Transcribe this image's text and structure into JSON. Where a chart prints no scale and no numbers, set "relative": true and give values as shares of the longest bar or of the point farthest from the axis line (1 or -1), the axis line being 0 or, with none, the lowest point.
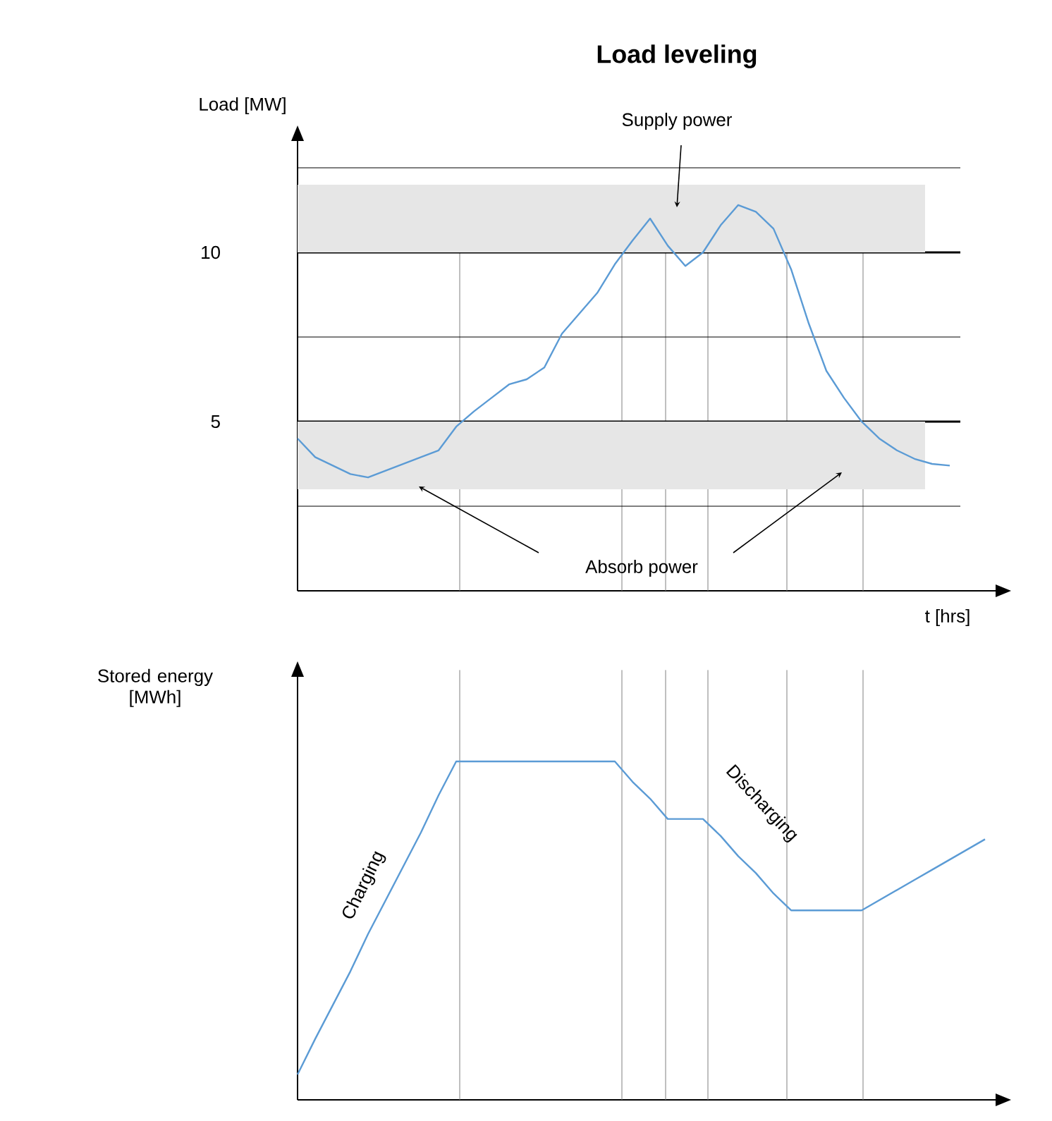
{
  "chart_data": [
    {
      "type": "line",
      "title": "Load leveling",
      "ylabel": "Load [MW]",
      "xlabel": "t [hrs]",
      "color": "#5b9bd5",
      "categories": [
        null,
        null,
        null,
        null,
        null,
        null,
        null,
        null,
        null,
        null,
        null,
        null,
        null,
        null,
        null,
        null,
        null,
        null,
        null,
        null,
        null,
        null,
        null,
        null,
        null,
        null,
        null,
        null,
        null,
        null,
        null,
        null,
        null,
        null,
        null,
        null,
        null,
        null,
        null,
        null
      ],
      "values": [
        4.5,
        3.95,
        3.7,
        3.45,
        3.35,
        3.55,
        3.75,
        3.95,
        4.15,
        4.85,
        5.3,
        5.7,
        6.1,
        6.25,
        6.6,
        7.6,
        8.2,
        8.8,
        9.65,
        10.35,
        11,
        10.2,
        9.6,
        10,
        10.8,
        11.4,
        11.2,
        10.7,
        9.5,
        7.9,
        6.5,
        5.7,
        5.0,
        4.5,
        4.15,
        3.9,
        3.75,
        3.7,
        null,
        null
      ],
      "ylim": [
        0,
        13.5
      ],
      "yticks": [
        {
          "value": 2.5,
          "label": null
        },
        5,
        {
          "value": 7.5,
          "label": null
        },
        10,
        {
          "value": 12.5,
          "label": null
        }
      ],
      "tick_labels": "y",
      "grid": "y",
      "bands": [
        {
          "axis": "y",
          "from": 10,
          "to": 12,
          "color": "#e6e6e6"
        },
        {
          "axis": "y",
          "from": 3,
          "to": 5,
          "color": "#e6e6e6"
        }
      ],
      "annotations": [
        "Supply power",
        "Absorb power"
      ]
    },
    {
      "type": "line",
      "relative": true,
      "ylabel": "Stored energy [MWh]",
      "color": "#5b9bd5",
      "categories": [
        null,
        null,
        null,
        null,
        null,
        null,
        null,
        null,
        null,
        null,
        null,
        null,
        null,
        null,
        null,
        null,
        null,
        null,
        null,
        null,
        null,
        null,
        null,
        null,
        null,
        null,
        null,
        null,
        null,
        null,
        null,
        null,
        null,
        null,
        null,
        null,
        null,
        null,
        null,
        null
      ],
      "values": [
        0.075,
        0.18,
        0.28,
        0.38,
        0.49,
        0.59,
        0.69,
        0.79,
        0.9,
        1,
        1,
        1,
        1,
        1,
        1,
        1,
        1,
        1,
        1,
        0.94,
        0.89,
        0.83,
        0.83,
        0.83,
        0.78,
        0.72,
        0.67,
        0.61,
        0.56,
        0.56,
        0.56,
        0.56,
        0.56,
        0.59,
        0.62,
        0.65,
        0.68,
        0.71,
        0.74,
        0.77
      ],
      "tick_labels": false,
      "annotations": [
        "Charging",
        "Discharging"
      ]
    }
  ]
}
